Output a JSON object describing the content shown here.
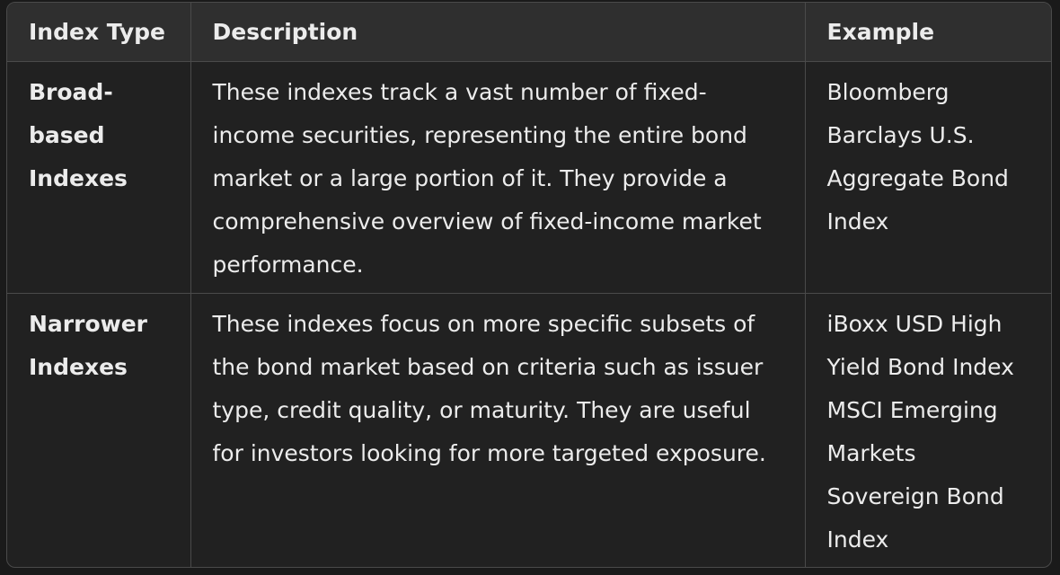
{
  "table": {
    "headers": [
      "Index Type",
      "Description",
      "Example"
    ],
    "rows": [
      {
        "type": "Broad-based Indexes",
        "description": "These indexes track a vast number of fixed-income securities, representing the entire bond market or a large portion of it. They provide a comprehensive overview of fixed-income market performance.",
        "examples": [
          "Bloomberg Barclays U.S. Aggregate Bond Index"
        ]
      },
      {
        "type": "Narrower Indexes",
        "description": "These indexes focus on more specific subsets of the bond market based on criteria such as issuer type, credit quality, or maturity. They are useful for investors looking for more targeted exposure.",
        "examples": [
          "iBoxx USD High Yield Bond Index",
          "MSCI Emerging Markets Sovereign Bond Index"
        ]
      }
    ]
  }
}
